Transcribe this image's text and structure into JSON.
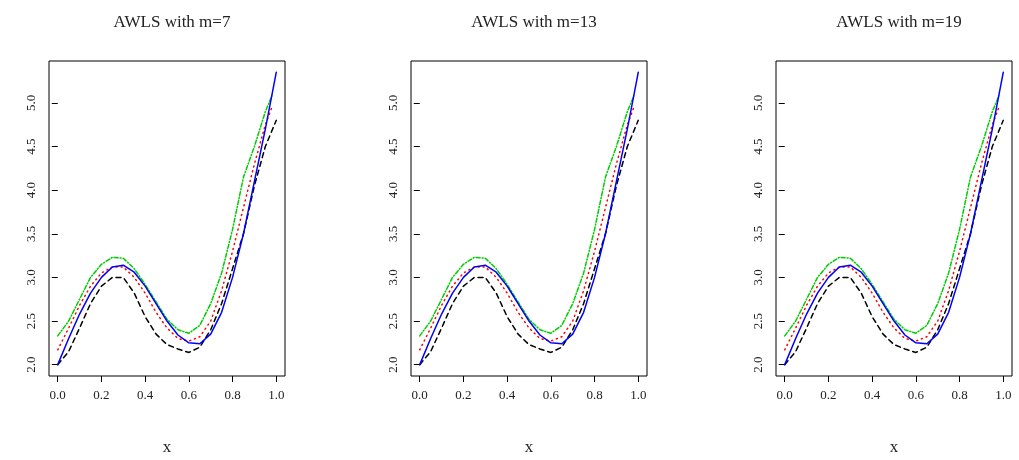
{
  "chart_data": [
    {
      "type": "line",
      "title": "AWLS with m=7",
      "xlabel": "x",
      "xlim": [
        -0.04,
        1.04
      ],
      "ylim": [
        1.87,
        5.48
      ],
      "xticks": [
        {
          "value": 0,
          "label": "0.0"
        },
        {
          "value": 0.2,
          "label": "0.2"
        },
        {
          "value": 0.4,
          "label": "0.4"
        },
        {
          "value": 0.6,
          "label": "0.6"
        },
        {
          "value": 0.8,
          "label": "0.8"
        },
        {
          "value": 1,
          "label": "1.0"
        }
      ],
      "yticks": [
        {
          "value": 2,
          "label": "2.0"
        },
        {
          "value": 2.5,
          "label": "2.5"
        },
        {
          "value": 3,
          "label": "3.0"
        },
        {
          "value": 3.5,
          "label": "3.5"
        },
        {
          "value": 4,
          "label": "4.0"
        },
        {
          "value": 4.5,
          "label": "4.5"
        },
        {
          "value": 5,
          "label": "5.0"
        }
      ],
      "grid": false,
      "marker": "none",
      "series": [
        {
          "color": "#000000",
          "line_style": "dashed",
          "x": [
            0,
            0.05,
            0.1,
            0.15,
            0.2,
            0.25,
            0.3,
            0.35,
            0.4,
            0.45,
            0.5,
            0.55,
            0.6,
            0.65,
            0.7,
            0.75,
            0.8,
            0.85,
            0.9,
            0.95,
            1.0
          ],
          "values": [
            2.0,
            2.15,
            2.42,
            2.7,
            2.9,
            3.0,
            3.0,
            2.82,
            2.55,
            2.35,
            2.23,
            2.18,
            2.14,
            2.2,
            2.4,
            2.7,
            3.1,
            3.5,
            4.05,
            4.5,
            4.8
          ]
        },
        {
          "color": "#ff0000",
          "line_style": "dotted",
          "x": [
            0,
            0.05,
            0.1,
            0.15,
            0.2,
            0.25,
            0.3,
            0.35,
            0.4,
            0.45,
            0.5,
            0.55,
            0.6,
            0.65,
            0.7,
            0.75,
            0.8,
            0.85,
            0.9,
            0.95,
            0.98
          ],
          "values": [
            2.17,
            2.42,
            2.68,
            2.9,
            3.05,
            3.12,
            3.12,
            3.0,
            2.82,
            2.6,
            2.42,
            2.3,
            2.27,
            2.32,
            2.5,
            2.85,
            3.3,
            3.8,
            4.3,
            4.75,
            4.95
          ]
        },
        {
          "color": "#00cd00",
          "line_style": "dashdot",
          "x": [
            0,
            0.05,
            0.1,
            0.15,
            0.2,
            0.25,
            0.3,
            0.35,
            0.4,
            0.45,
            0.5,
            0.55,
            0.6,
            0.65,
            0.7,
            0.75,
            0.8,
            0.85,
            0.9,
            0.95,
            0.98
          ],
          "values": [
            2.33,
            2.5,
            2.75,
            3.0,
            3.15,
            3.23,
            3.22,
            3.1,
            2.92,
            2.72,
            2.52,
            2.4,
            2.36,
            2.45,
            2.7,
            3.05,
            3.55,
            4.15,
            4.5,
            4.9,
            5.08
          ]
        },
        {
          "color": "#0000ff",
          "line_style": "solid",
          "x": [
            0,
            0.05,
            0.1,
            0.15,
            0.2,
            0.25,
            0.3,
            0.35,
            0.4,
            0.45,
            0.5,
            0.55,
            0.6,
            0.65,
            0.7,
            0.75,
            0.8,
            0.85,
            0.9,
            0.95,
            1.0
          ],
          "values": [
            2.0,
            2.3,
            2.58,
            2.82,
            3.0,
            3.12,
            3.14,
            3.06,
            2.9,
            2.7,
            2.5,
            2.34,
            2.25,
            2.24,
            2.35,
            2.6,
            3.0,
            3.5,
            4.1,
            4.7,
            5.35
          ]
        }
      ]
    },
    {
      "type": "line",
      "title": "AWLS with m=13",
      "xlabel": "x",
      "xlim": [
        -0.04,
        1.04
      ],
      "ylim": [
        1.87,
        5.48
      ],
      "xticks": [
        {
          "value": 0,
          "label": "0.0"
        },
        {
          "value": 0.2,
          "label": "0.2"
        },
        {
          "value": 0.4,
          "label": "0.4"
        },
        {
          "value": 0.6,
          "label": "0.6"
        },
        {
          "value": 0.8,
          "label": "0.8"
        },
        {
          "value": 1,
          "label": "1.0"
        }
      ],
      "yticks": [
        {
          "value": 2,
          "label": "2.0"
        },
        {
          "value": 2.5,
          "label": "2.5"
        },
        {
          "value": 3,
          "label": "3.0"
        },
        {
          "value": 3.5,
          "label": "3.5"
        },
        {
          "value": 4,
          "label": "4.0"
        },
        {
          "value": 4.5,
          "label": "4.5"
        },
        {
          "value": 5,
          "label": "5.0"
        }
      ],
      "grid": false,
      "marker": "none",
      "series": [
        {
          "color": "#000000",
          "line_style": "dashed",
          "x": [
            0,
            0.05,
            0.1,
            0.15,
            0.2,
            0.25,
            0.3,
            0.35,
            0.4,
            0.45,
            0.5,
            0.55,
            0.6,
            0.65,
            0.7,
            0.75,
            0.8,
            0.85,
            0.9,
            0.95,
            1.0
          ],
          "values": [
            2.0,
            2.15,
            2.42,
            2.7,
            2.9,
            3.0,
            3.0,
            2.82,
            2.55,
            2.35,
            2.23,
            2.18,
            2.14,
            2.2,
            2.4,
            2.7,
            3.1,
            3.5,
            4.05,
            4.5,
            4.8
          ]
        },
        {
          "color": "#ff0000",
          "line_style": "dotted",
          "x": [
            0,
            0.05,
            0.1,
            0.15,
            0.2,
            0.25,
            0.3,
            0.35,
            0.4,
            0.45,
            0.5,
            0.55,
            0.6,
            0.65,
            0.7,
            0.75,
            0.8,
            0.85,
            0.9,
            0.95,
            0.98
          ],
          "values": [
            2.17,
            2.42,
            2.68,
            2.9,
            3.05,
            3.12,
            3.12,
            3.0,
            2.82,
            2.6,
            2.42,
            2.3,
            2.27,
            2.32,
            2.5,
            2.85,
            3.3,
            3.8,
            4.3,
            4.75,
            4.95
          ]
        },
        {
          "color": "#00cd00",
          "line_style": "dashdot",
          "x": [
            0,
            0.05,
            0.1,
            0.15,
            0.2,
            0.25,
            0.3,
            0.35,
            0.4,
            0.45,
            0.5,
            0.55,
            0.6,
            0.65,
            0.7,
            0.75,
            0.8,
            0.85,
            0.9,
            0.95,
            0.98
          ],
          "values": [
            2.33,
            2.5,
            2.75,
            3.0,
            3.15,
            3.23,
            3.22,
            3.1,
            2.92,
            2.72,
            2.52,
            2.4,
            2.36,
            2.45,
            2.7,
            3.05,
            3.55,
            4.15,
            4.5,
            4.9,
            5.08
          ]
        },
        {
          "color": "#0000ff",
          "line_style": "solid",
          "x": [
            0,
            0.05,
            0.1,
            0.15,
            0.2,
            0.25,
            0.3,
            0.35,
            0.4,
            0.45,
            0.5,
            0.55,
            0.6,
            0.65,
            0.7,
            0.75,
            0.8,
            0.85,
            0.9,
            0.95,
            1.0
          ],
          "values": [
            2.0,
            2.3,
            2.58,
            2.82,
            3.0,
            3.12,
            3.14,
            3.06,
            2.9,
            2.7,
            2.5,
            2.34,
            2.25,
            2.24,
            2.35,
            2.6,
            3.0,
            3.5,
            4.1,
            4.7,
            5.35
          ]
        }
      ]
    },
    {
      "type": "line",
      "title": "AWLS with m=19",
      "xlabel": "x",
      "xlim": [
        -0.04,
        1.04
      ],
      "ylim": [
        1.87,
        5.48
      ],
      "xticks": [
        {
          "value": 0,
          "label": "0.0"
        },
        {
          "value": 0.2,
          "label": "0.2"
        },
        {
          "value": 0.4,
          "label": "0.4"
        },
        {
          "value": 0.6,
          "label": "0.6"
        },
        {
          "value": 0.8,
          "label": "0.8"
        },
        {
          "value": 1,
          "label": "1.0"
        }
      ],
      "yticks": [
        {
          "value": 2,
          "label": "2.0"
        },
        {
          "value": 2.5,
          "label": "2.5"
        },
        {
          "value": 3,
          "label": "3.0"
        },
        {
          "value": 3.5,
          "label": "3.5"
        },
        {
          "value": 4,
          "label": "4.0"
        },
        {
          "value": 4.5,
          "label": "4.5"
        },
        {
          "value": 5,
          "label": "5.0"
        }
      ],
      "grid": false,
      "marker": "none",
      "series": [
        {
          "color": "#000000",
          "line_style": "dashed",
          "x": [
            0,
            0.05,
            0.1,
            0.15,
            0.2,
            0.25,
            0.3,
            0.35,
            0.4,
            0.45,
            0.5,
            0.55,
            0.6,
            0.65,
            0.7,
            0.75,
            0.8,
            0.85,
            0.9,
            0.95,
            1.0
          ],
          "values": [
            2.0,
            2.15,
            2.42,
            2.7,
            2.9,
            3.0,
            3.0,
            2.82,
            2.55,
            2.35,
            2.23,
            2.18,
            2.14,
            2.2,
            2.4,
            2.7,
            3.1,
            3.5,
            4.05,
            4.5,
            4.8
          ]
        },
        {
          "color": "#ff0000",
          "line_style": "dotted",
          "x": [
            0,
            0.05,
            0.1,
            0.15,
            0.2,
            0.25,
            0.3,
            0.35,
            0.4,
            0.45,
            0.5,
            0.55,
            0.6,
            0.65,
            0.7,
            0.75,
            0.8,
            0.85,
            0.9,
            0.95,
            0.98
          ],
          "values": [
            2.17,
            2.42,
            2.68,
            2.9,
            3.05,
            3.12,
            3.12,
            3.0,
            2.82,
            2.6,
            2.42,
            2.3,
            2.27,
            2.32,
            2.5,
            2.85,
            3.3,
            3.8,
            4.3,
            4.75,
            4.95
          ]
        },
        {
          "color": "#00cd00",
          "line_style": "dashdot",
          "x": [
            0,
            0.05,
            0.1,
            0.15,
            0.2,
            0.25,
            0.3,
            0.35,
            0.4,
            0.45,
            0.5,
            0.55,
            0.6,
            0.65,
            0.7,
            0.75,
            0.8,
            0.85,
            0.9,
            0.95,
            0.98
          ],
          "values": [
            2.33,
            2.5,
            2.75,
            3.0,
            3.15,
            3.23,
            3.22,
            3.1,
            2.92,
            2.72,
            2.52,
            2.4,
            2.36,
            2.45,
            2.7,
            3.05,
            3.55,
            4.15,
            4.5,
            4.9,
            5.08
          ]
        },
        {
          "color": "#0000ff",
          "line_style": "solid",
          "x": [
            0,
            0.05,
            0.1,
            0.15,
            0.2,
            0.25,
            0.3,
            0.35,
            0.4,
            0.45,
            0.5,
            0.55,
            0.6,
            0.65,
            0.7,
            0.75,
            0.8,
            0.85,
            0.9,
            0.95,
            1.0
          ],
          "values": [
            2.0,
            2.3,
            2.58,
            2.82,
            3.0,
            3.12,
            3.14,
            3.06,
            2.9,
            2.7,
            2.5,
            2.34,
            2.25,
            2.24,
            2.35,
            2.6,
            3.0,
            3.5,
            4.1,
            4.7,
            5.35
          ]
        }
      ]
    }
  ]
}
